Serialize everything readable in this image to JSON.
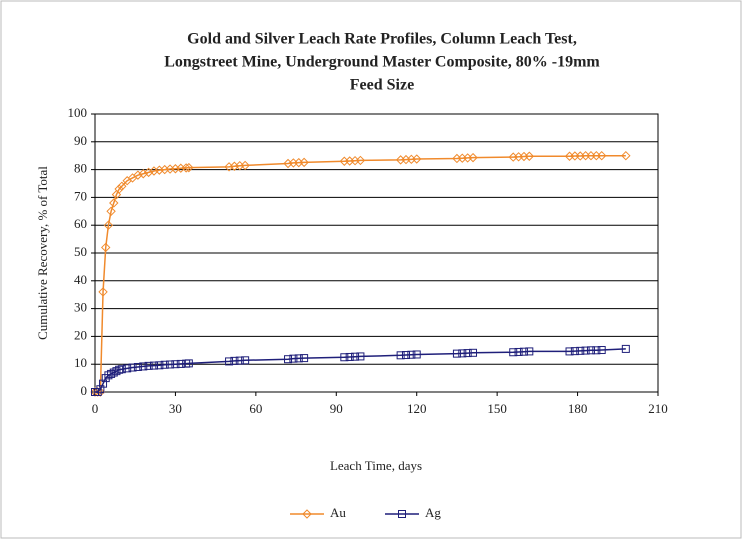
{
  "chart_data": {
    "type": "line",
    "title_lines": [
      "Gold and Silver Leach Rate Profiles,  Column Leach Test,",
      "Longstreet Mine, Underground  Master Composite, 80% -19mm",
      "Feed Size"
    ],
    "x_label": "Leach Time, days",
    "y_label": "Cumulative Recovery, % of Total",
    "x": [
      0,
      1,
      2,
      3,
      4,
      5,
      6,
      7,
      8,
      9,
      10,
      12,
      14,
      16,
      18,
      20,
      22,
      24,
      26,
      28,
      30,
      32,
      34,
      35,
      50,
      52,
      54,
      56,
      72,
      74,
      76,
      78,
      93,
      95,
      97,
      99,
      114,
      116,
      118,
      120,
      135,
      137,
      139,
      141,
      156,
      158,
      160,
      162,
      177,
      179,
      181,
      183,
      185,
      187,
      189,
      198
    ],
    "series": [
      {
        "name": "Au",
        "color": "#f08a2c",
        "marker": "diamond",
        "values": [
          0,
          0,
          0,
          36,
          52,
          60,
          65,
          68,
          71,
          73,
          74,
          76,
          77,
          78,
          78.5,
          79,
          79.5,
          79.8,
          80,
          80.2,
          80.3,
          80.5,
          80.6,
          80.7,
          81,
          81.2,
          81.4,
          81.5,
          82.2,
          82.4,
          82.5,
          82.6,
          83,
          83.1,
          83.2,
          83.3,
          83.5,
          83.6,
          83.7,
          83.8,
          84,
          84.1,
          84.2,
          84.3,
          84.5,
          84.6,
          84.7,
          84.8,
          84.8,
          84.9,
          84.9,
          85,
          85,
          85,
          85,
          85
        ]
      },
      {
        "name": "Ag",
        "color": "#1f1f7a",
        "marker": "square",
        "values": [
          0,
          0,
          1,
          3,
          5,
          6,
          6.5,
          7,
          7.5,
          8,
          8.2,
          8.5,
          8.8,
          9,
          9.2,
          9.4,
          9.5,
          9.6,
          9.8,
          9.9,
          10,
          10.1,
          10.2,
          10.3,
          11,
          11.2,
          11.3,
          11.4,
          11.8,
          12,
          12.1,
          12.2,
          12.5,
          12.6,
          12.7,
          12.8,
          13.2,
          13.3,
          13.4,
          13.5,
          13.8,
          13.9,
          14,
          14.1,
          14.3,
          14.4,
          14.5,
          14.6,
          14.6,
          14.7,
          14.8,
          14.9,
          15,
          15,
          15.1,
          15.5
        ]
      }
    ],
    "xlim": [
      0,
      210
    ],
    "xticks": [
      0,
      30,
      60,
      90,
      120,
      150,
      180,
      210
    ],
    "ylim": [
      0,
      100
    ],
    "yticks": [
      0,
      10,
      20,
      30,
      40,
      50,
      60,
      70,
      80,
      90,
      100
    ],
    "grid": true,
    "legend": "bottom"
  }
}
